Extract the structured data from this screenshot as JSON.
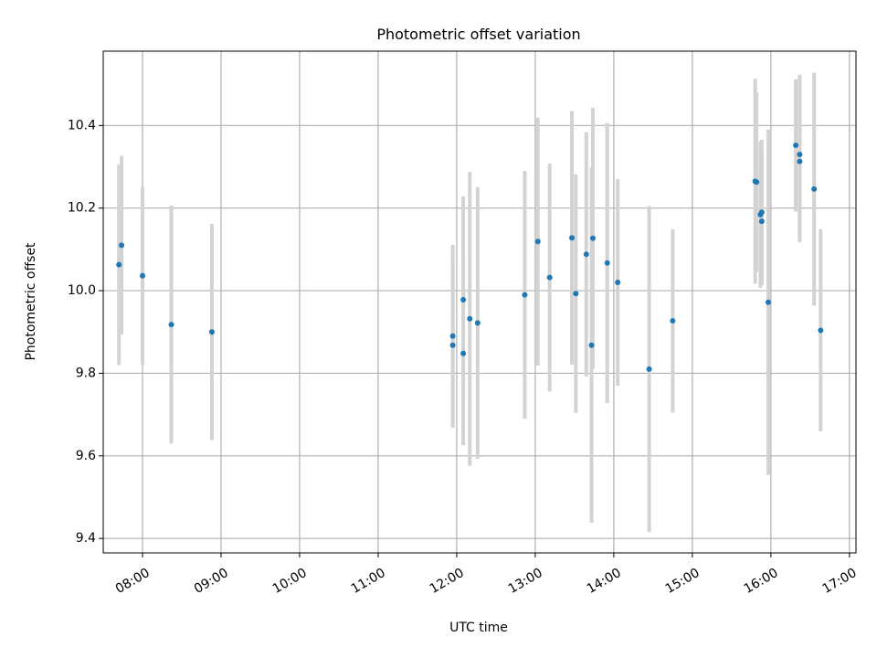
{
  "chart_data": {
    "type": "scatter",
    "title": "Photometric offset variation",
    "xlabel": "UTC time",
    "ylabel": "Photometric offset",
    "grid": true,
    "legend": "none",
    "xlim": [
      "07:30",
      "17:05"
    ],
    "ylim": [
      9.365,
      10.58
    ],
    "x_ticks": [
      "08:00",
      "09:00",
      "10:00",
      "11:00",
      "12:00",
      "13:00",
      "14:00",
      "15:00",
      "16:00",
      "17:00"
    ],
    "y_ticks": [
      "9.4",
      "9.6",
      "9.8",
      "10.0",
      "10.2",
      "10.4"
    ],
    "colors": {
      "point": "#1f77b4",
      "errorbar": "#d3d3d3",
      "grid": "#b0b0b0"
    },
    "points": [
      {
        "x": "07:42",
        "y": 10.063,
        "err": 0.243
      },
      {
        "x": "07:44",
        "y": 10.11,
        "err": 0.216
      },
      {
        "x": "08:00",
        "y": 10.036,
        "err": 0.215
      },
      {
        "x": "08:22",
        "y": 9.918,
        "err": 0.288
      },
      {
        "x": "08:53",
        "y": 9.9,
        "err": 0.262
      },
      {
        "x": "11:57",
        "y": 9.89,
        "err": 0.221
      },
      {
        "x": "11:57",
        "y": 9.868,
        "err": 0.2
      },
      {
        "x": "12:05",
        "y": 9.978,
        "err": 0.25
      },
      {
        "x": "12:05",
        "y": 9.848,
        "err": 0.222
      },
      {
        "x": "12:10",
        "y": 9.932,
        "err": 0.356
      },
      {
        "x": "12:16",
        "y": 9.922,
        "err": 0.329
      },
      {
        "x": "12:52",
        "y": 9.99,
        "err": 0.3
      },
      {
        "x": "13:02",
        "y": 10.119,
        "err": 0.3
      },
      {
        "x": "13:11",
        "y": 10.032,
        "err": 0.276
      },
      {
        "x": "13:28",
        "y": 10.128,
        "err": 0.307
      },
      {
        "x": "13:31",
        "y": 9.993,
        "err": 0.289
      },
      {
        "x": "13:39",
        "y": 10.088,
        "err": 0.296
      },
      {
        "x": "13:43",
        "y": 9.868,
        "err": 0.43
      },
      {
        "x": "13:44",
        "y": 10.127,
        "err": 0.316
      },
      {
        "x": "13:55",
        "y": 10.067,
        "err": 0.339
      },
      {
        "x": "14:03",
        "y": 10.02,
        "err": 0.25
      },
      {
        "x": "14:27",
        "y": 9.81,
        "err": 0.395
      },
      {
        "x": "14:45",
        "y": 9.927,
        "err": 0.222
      },
      {
        "x": "15:48",
        "y": 10.265,
        "err": 0.248
      },
      {
        "x": "15:49",
        "y": 10.263,
        "err": 0.217
      },
      {
        "x": "15:52",
        "y": 10.184,
        "err": 0.177
      },
      {
        "x": "15:53",
        "y": 10.19,
        "err": 0.176
      },
      {
        "x": "15:53",
        "y": 10.168,
        "err": 0.153
      },
      {
        "x": "15:58",
        "y": 9.972,
        "err": 0.418
      },
      {
        "x": "16:19",
        "y": 10.352,
        "err": 0.16
      },
      {
        "x": "16:22",
        "y": 10.33,
        "err": 0.193
      },
      {
        "x": "16:22",
        "y": 10.313,
        "err": 0.196
      },
      {
        "x": "16:33",
        "y": 10.246,
        "err": 0.282
      },
      {
        "x": "16:38",
        "y": 9.904,
        "err": 0.245
      }
    ]
  }
}
